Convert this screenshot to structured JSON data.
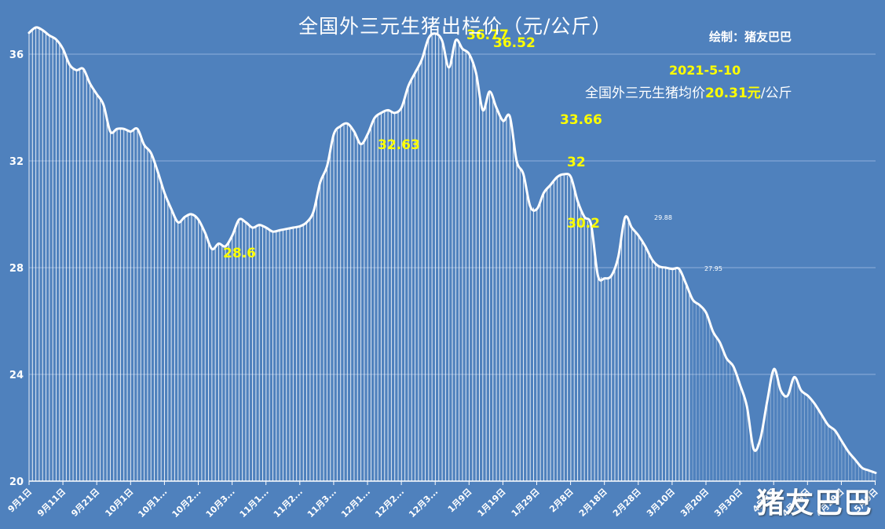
{
  "header": {
    "title": "全国外三元生猪出栏价（元/公斤）",
    "credit": "绘制：猪友巴巴"
  },
  "note": {
    "date": "2021-5-10",
    "avg_prefix": "全国外三元生猪均价",
    "avg_value": "20.31元",
    "avg_suffix": "/公斤"
  },
  "watermark": "猪友巴巴",
  "colors": {
    "background": "#4f81bd",
    "line": "#ffffff",
    "annotation": "#ffff00",
    "grid": "#8fb0da"
  },
  "chart_data": {
    "type": "line",
    "title": "全国外三元生猪出栏价（元/公斤）",
    "xlabel": "",
    "ylabel": "元/公斤",
    "ylim": [
      20,
      37
    ],
    "yticks": [
      20,
      24,
      28,
      32,
      36
    ],
    "grid": true,
    "x_tick_labels": [
      "9月1日",
      "9月11日",
      "9月21日",
      "10月1日",
      "10月1...",
      "10月2...",
      "10月3...",
      "11月1...",
      "11月2...",
      "11月3...",
      "12月1...",
      "12月2...",
      "12月3...",
      "1月9日",
      "1月19日",
      "1月29日",
      "2月8日",
      "2月18日",
      "2月28日",
      "3月10日",
      "3月20日",
      "3月30日",
      "4月9日",
      "4月19日",
      "4月29日",
      "5月9日"
    ],
    "annotations": [
      {
        "label": "36.77",
        "style": "yellow"
      },
      {
        "label": "36.52",
        "style": "yellow"
      },
      {
        "label": "33.66",
        "style": "yellow"
      },
      {
        "label": "32.63",
        "style": "yellow"
      },
      {
        "label": "32",
        "style": "yellow"
      },
      {
        "label": "30.2",
        "style": "yellow"
      },
      {
        "label": "28.6",
        "style": "yellow"
      },
      {
        "label": "29.88",
        "style": "white-small"
      },
      {
        "label": "27.95",
        "style": "white-small"
      }
    ],
    "series": [
      {
        "name": "全国外三元生猪出栏价",
        "x_days": [
          0,
          2,
          4,
          6,
          8,
          10,
          12,
          14,
          16,
          18,
          20,
          22,
          24,
          26,
          28,
          30,
          32,
          34,
          36,
          38,
          40,
          42,
          44,
          46,
          48,
          50,
          52,
          54,
          56,
          58,
          60,
          62,
          64,
          66,
          68,
          70,
          72,
          74,
          76,
          78,
          80,
          82,
          84,
          86,
          88,
          90,
          92,
          94,
          96,
          98,
          100,
          102,
          104,
          106,
          108,
          110,
          112,
          114,
          116,
          118,
          120,
          122,
          124,
          126,
          128,
          130,
          132,
          134,
          136,
          138,
          140,
          142,
          144,
          146,
          148,
          150,
          152,
          154,
          156,
          158,
          160,
          162,
          164,
          166,
          168,
          170,
          172,
          174,
          176,
          178,
          180,
          182,
          184,
          186,
          188,
          190,
          192,
          194,
          196,
          198,
          200,
          202,
          204,
          206,
          208,
          210,
          212,
          214,
          216,
          218,
          220,
          222,
          224,
          226,
          228,
          230,
          232,
          234,
          236,
          238,
          240,
          242,
          244,
          246,
          248,
          250
        ],
        "values": [
          36.8,
          37.0,
          36.9,
          36.7,
          36.55,
          36.2,
          35.6,
          35.4,
          35.45,
          34.9,
          34.5,
          34.1,
          33.1,
          33.2,
          33.2,
          33.1,
          33.2,
          32.6,
          32.3,
          31.6,
          30.8,
          30.2,
          29.7,
          29.9,
          30.0,
          29.8,
          29.3,
          28.7,
          28.9,
          28.8,
          29.2,
          29.8,
          29.7,
          29.5,
          29.6,
          29.5,
          29.35,
          29.4,
          29.45,
          29.5,
          29.55,
          29.7,
          30.1,
          31.2,
          31.8,
          33.0,
          33.3,
          33.4,
          33.1,
          32.63,
          33.0,
          33.6,
          33.8,
          33.9,
          33.8,
          34.0,
          34.8,
          35.3,
          35.8,
          36.6,
          36.77,
          36.5,
          35.5,
          36.52,
          36.2,
          36.0,
          35.3,
          33.9,
          34.6,
          34.0,
          33.5,
          33.66,
          32.0,
          31.5,
          30.3,
          30.2,
          30.8,
          31.1,
          31.4,
          31.5,
          31.4,
          30.5,
          29.9,
          29.6,
          27.7,
          27.6,
          27.7,
          28.4,
          29.88,
          29.5,
          29.2,
          28.8,
          28.3,
          28.05,
          28.0,
          27.95,
          27.95,
          27.4,
          26.8,
          26.6,
          26.3,
          25.6,
          25.2,
          24.6,
          24.3,
          23.6,
          22.8,
          21.2,
          21.6,
          23.0,
          24.2,
          23.4,
          23.2,
          23.9,
          23.4,
          23.2,
          22.9,
          22.5,
          22.1,
          21.9,
          21.5,
          21.1,
          20.8,
          20.5,
          20.4,
          20.31
        ],
        "peaks": {
          "max": 36.77,
          "min": 20.31
        }
      }
    ]
  }
}
